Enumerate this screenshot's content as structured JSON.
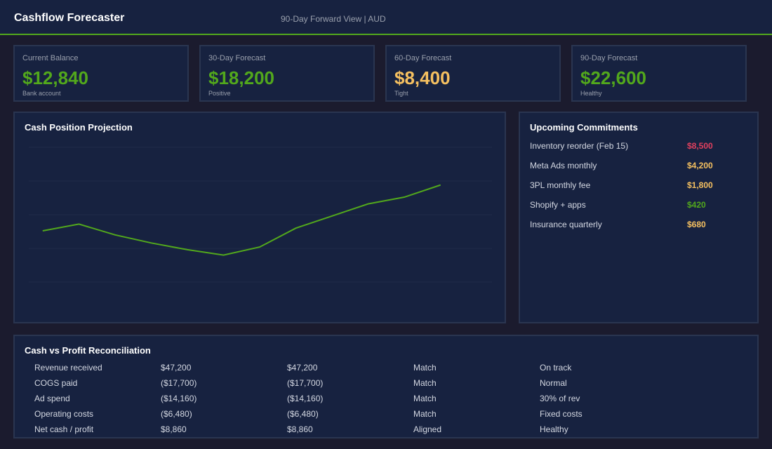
{
  "header": {
    "title": "Cashflow Forecaster",
    "subtitle": "90-Day Forward View | AUD"
  },
  "colors": {
    "green": "#52a81c",
    "yellow": "#f5c060",
    "red": "#e0405e",
    "accent": "#52a81c"
  },
  "cards": [
    {
      "label": "Current Balance",
      "value": "$12,840",
      "sub": "Bank account",
      "color": "#52a81c"
    },
    {
      "label": "30-Day Forecast",
      "value": "$18,200",
      "sub": "Positive",
      "color": "#52a81c"
    },
    {
      "label": "60-Day Forecast",
      "value": "$8,400",
      "sub": "Tight",
      "color": "#f5c060"
    },
    {
      "label": "90-Day Forecast",
      "value": "$22,600",
      "sub": "Healthy",
      "color": "#52a81c"
    }
  ],
  "chart": {
    "title": "Cash Position Projection"
  },
  "chart_data": {
    "type": "line",
    "title": "Cash Position Projection",
    "xlabel": "",
    "ylabel": "",
    "ylim": [
      0,
      100
    ],
    "grid": true,
    "gridlines": [
      0,
      25,
      50,
      75,
      100
    ],
    "x": [
      1,
      2,
      3,
      4,
      5,
      6,
      7,
      8,
      9,
      10,
      11,
      12
    ],
    "series": [
      {
        "values": [
          38,
          43,
          35,
          29,
          24,
          20,
          26,
          40,
          49,
          58,
          63,
          72
        ],
        "color": "#52a81c"
      }
    ]
  },
  "commitments": {
    "title": "Upcoming Commitments",
    "items": [
      {
        "label": "Inventory reorder (Feb 15)",
        "amount": "$8,500",
        "color": "#e0405e"
      },
      {
        "label": "Meta Ads monthly",
        "amount": "$4,200",
        "color": "#f5c060"
      },
      {
        "label": "3PL monthly fee",
        "amount": "$1,800",
        "color": "#f5c060"
      },
      {
        "label": "Shopify + apps",
        "amount": "$420",
        "color": "#52a81c"
      },
      {
        "label": "Insurance quarterly",
        "amount": "$680",
        "color": "#f5c060"
      }
    ]
  },
  "reconciliation": {
    "title": "Cash vs Profit Reconciliation",
    "rows": [
      [
        "Revenue received",
        "$47,200",
        "$47,200",
        "Match",
        "On track"
      ],
      [
        "COGS paid",
        "($17,700)",
        "($17,700)",
        "Match",
        "Normal"
      ],
      [
        "Ad spend",
        "($14,160)",
        "($14,160)",
        "Match",
        "30% of rev"
      ],
      [
        "Operating costs",
        "($6,480)",
        "($6,480)",
        "Match",
        "Fixed costs"
      ],
      [
        "Net cash / profit",
        "$8,860",
        "$8,860",
        "Aligned",
        "Healthy"
      ]
    ]
  }
}
